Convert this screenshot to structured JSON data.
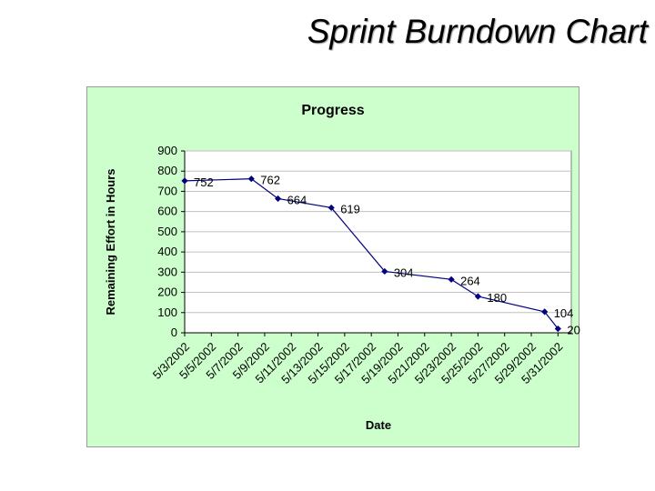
{
  "slide": {
    "title": "Sprint Burndown Chart"
  },
  "chart_data": {
    "type": "line",
    "title": "Progress",
    "xlabel": "Date",
    "ylabel": "Remaining Effort in Hours",
    "ylim": [
      0,
      900
    ],
    "yticks": [
      0,
      100,
      200,
      300,
      400,
      500,
      600,
      700,
      800,
      900
    ],
    "xticks": [
      "5/3/2002",
      "5/5/2002",
      "5/7/2002",
      "5/9/2002",
      "5/11/2002",
      "5/13/2002",
      "5/15/2002",
      "5/17/2002",
      "5/19/2002",
      "5/21/2002",
      "5/23/2002",
      "5/25/2002",
      "5/27/2002",
      "5/29/2002",
      "5/31/2002"
    ],
    "x": [
      "5/3/2002",
      "5/8/2002",
      "5/10/2002",
      "5/14/2002",
      "5/18/2002",
      "5/23/2002",
      "5/25/2002",
      "5/30/2002",
      "5/31/2002"
    ],
    "values": [
      752,
      762,
      664,
      619,
      304,
      264,
      180,
      104,
      20
    ],
    "grid": "horizontal",
    "colors": {
      "line": "#000080",
      "background": "#ccffcc",
      "plot": "#ffffff",
      "grid": "#c0c0c0"
    }
  }
}
